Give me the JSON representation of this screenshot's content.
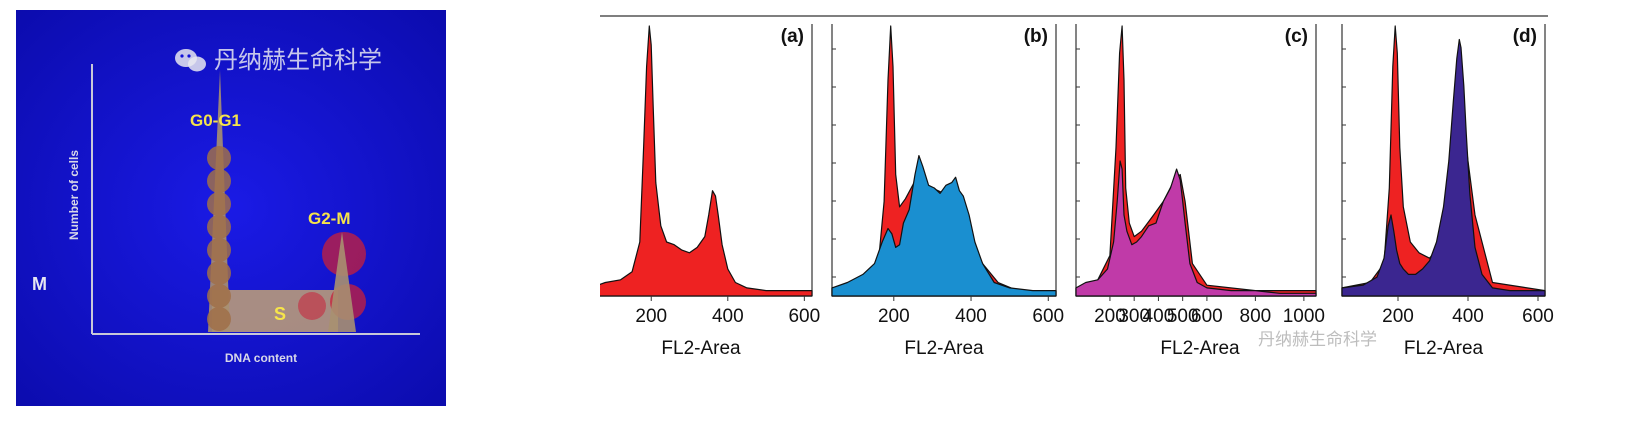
{
  "diagram": {
    "watermark": "丹纳赫生命科学",
    "y_label": "Number of cells",
    "x_label": "DNA content",
    "side_label": "M",
    "peak_g0g1": "G0-G1",
    "peak_g2m": "G2-M",
    "phase_s": "S",
    "bg_color": "#1212d8",
    "label_color": "#f6e44a"
  },
  "chart_data": [
    {
      "type": "area",
      "panel_label": "(a)",
      "xlabel": "FL2-Area",
      "xlim": [
        40,
        620
      ],
      "ticks": [
        200,
        400,
        600
      ],
      "series": [
        {
          "color": "#ee2222",
          "x": [
            40,
            80,
            120,
            150,
            170,
            180,
            188,
            195,
            200,
            205,
            212,
            225,
            240,
            260,
            280,
            300,
            320,
            340,
            350,
            360,
            368,
            375,
            385,
            400,
            420,
            450,
            500,
            560,
            620
          ],
          "y": [
            0.03,
            0.05,
            0.06,
            0.09,
            0.2,
            0.55,
            0.85,
            1.0,
            0.93,
            0.7,
            0.42,
            0.26,
            0.2,
            0.19,
            0.17,
            0.16,
            0.18,
            0.22,
            0.3,
            0.39,
            0.37,
            0.3,
            0.19,
            0.1,
            0.05,
            0.03,
            0.02,
            0.02,
            0.02
          ]
        }
      ]
    },
    {
      "type": "area",
      "panel_label": "(b)",
      "xlabel": "FL2-Area",
      "xlim": [
        40,
        620
      ],
      "ticks": [
        200,
        400,
        600
      ],
      "series": [
        {
          "color": "#ee2222",
          "x": [
            40,
            120,
            160,
            175,
            185,
            192,
            198,
            205,
            215,
            230,
            260,
            300,
            330,
            360,
            380,
            400,
            430,
            470,
            520,
            620
          ],
          "y": [
            0.03,
            0.05,
            0.12,
            0.35,
            0.8,
            1.0,
            0.85,
            0.45,
            0.33,
            0.36,
            0.44,
            0.4,
            0.38,
            0.36,
            0.33,
            0.22,
            0.12,
            0.05,
            0.02,
            0.02
          ]
        },
        {
          "color": "#1a8fd0",
          "x": [
            40,
            80,
            120,
            150,
            170,
            185,
            195,
            205,
            215,
            225,
            240,
            255,
            265,
            275,
            290,
            305,
            320,
            335,
            350,
            360,
            370,
            380,
            395,
            410,
            430,
            460,
            500,
            560,
            620
          ],
          "y": [
            0.03,
            0.05,
            0.08,
            0.12,
            0.2,
            0.25,
            0.23,
            0.18,
            0.19,
            0.27,
            0.32,
            0.45,
            0.52,
            0.48,
            0.41,
            0.4,
            0.38,
            0.41,
            0.42,
            0.44,
            0.39,
            0.37,
            0.3,
            0.2,
            0.12,
            0.05,
            0.03,
            0.02,
            0.02
          ]
        }
      ]
    },
    {
      "type": "area",
      "panel_label": "(c)",
      "xlabel": "FL2-Area",
      "xlim": [
        60,
        1050
      ],
      "ticks": [
        200,
        300,
        400,
        500,
        600,
        800,
        1000
      ],
      "series": [
        {
          "color": "#ee2222",
          "x": [
            60,
            150,
            200,
            225,
            240,
            250,
            258,
            265,
            280,
            300,
            330,
            380,
            420,
            460,
            490,
            510,
            540,
            600,
            800,
            1050
          ],
          "y": [
            0.03,
            0.06,
            0.15,
            0.55,
            0.9,
            1.0,
            0.8,
            0.4,
            0.27,
            0.22,
            0.24,
            0.3,
            0.35,
            0.42,
            0.45,
            0.35,
            0.12,
            0.04,
            0.02,
            0.02
          ]
        },
        {
          "color": "#c03aa8",
          "x": [
            60,
            100,
            150,
            190,
            215,
            230,
            242,
            250,
            258,
            270,
            290,
            310,
            330,
            360,
            390,
            420,
            450,
            475,
            490,
            500,
            510,
            530,
            560,
            600,
            700,
            800,
            900,
            1050
          ],
          "y": [
            0.03,
            0.05,
            0.06,
            0.1,
            0.2,
            0.35,
            0.5,
            0.47,
            0.3,
            0.24,
            0.19,
            0.2,
            0.22,
            0.26,
            0.27,
            0.35,
            0.4,
            0.47,
            0.43,
            0.35,
            0.27,
            0.12,
            0.05,
            0.03,
            0.02,
            0.02,
            0.01,
            0.01
          ]
        }
      ]
    },
    {
      "type": "area",
      "panel_label": "(d)",
      "xlabel": "FL2-Area",
      "xlim": [
        40,
        620
      ],
      "ticks": [
        200,
        400,
        600
      ],
      "series": [
        {
          "color": "#ee2222",
          "x": [
            40,
            120,
            160,
            175,
            185,
            192,
            198,
            205,
            215,
            235,
            260,
            290,
            310,
            330,
            360,
            380,
            420,
            470,
            620
          ],
          "y": [
            0.03,
            0.05,
            0.12,
            0.4,
            0.85,
            1.0,
            0.9,
            0.55,
            0.33,
            0.2,
            0.16,
            0.14,
            0.17,
            0.3,
            0.6,
            0.7,
            0.3,
            0.05,
            0.02
          ]
        },
        {
          "color": "#3b2690",
          "x": [
            40,
            100,
            140,
            160,
            172,
            180,
            188,
            196,
            205,
            215,
            230,
            250,
            270,
            290,
            310,
            330,
            345,
            358,
            368,
            375,
            380,
            388,
            395,
            405,
            420,
            440,
            470,
            520,
            620
          ],
          "y": [
            0.03,
            0.04,
            0.07,
            0.14,
            0.26,
            0.3,
            0.24,
            0.17,
            0.12,
            0.1,
            0.08,
            0.08,
            0.1,
            0.13,
            0.2,
            0.33,
            0.5,
            0.72,
            0.88,
            0.95,
            0.92,
            0.78,
            0.6,
            0.38,
            0.18,
            0.08,
            0.03,
            0.02,
            0.02
          ]
        }
      ]
    }
  ]
}
